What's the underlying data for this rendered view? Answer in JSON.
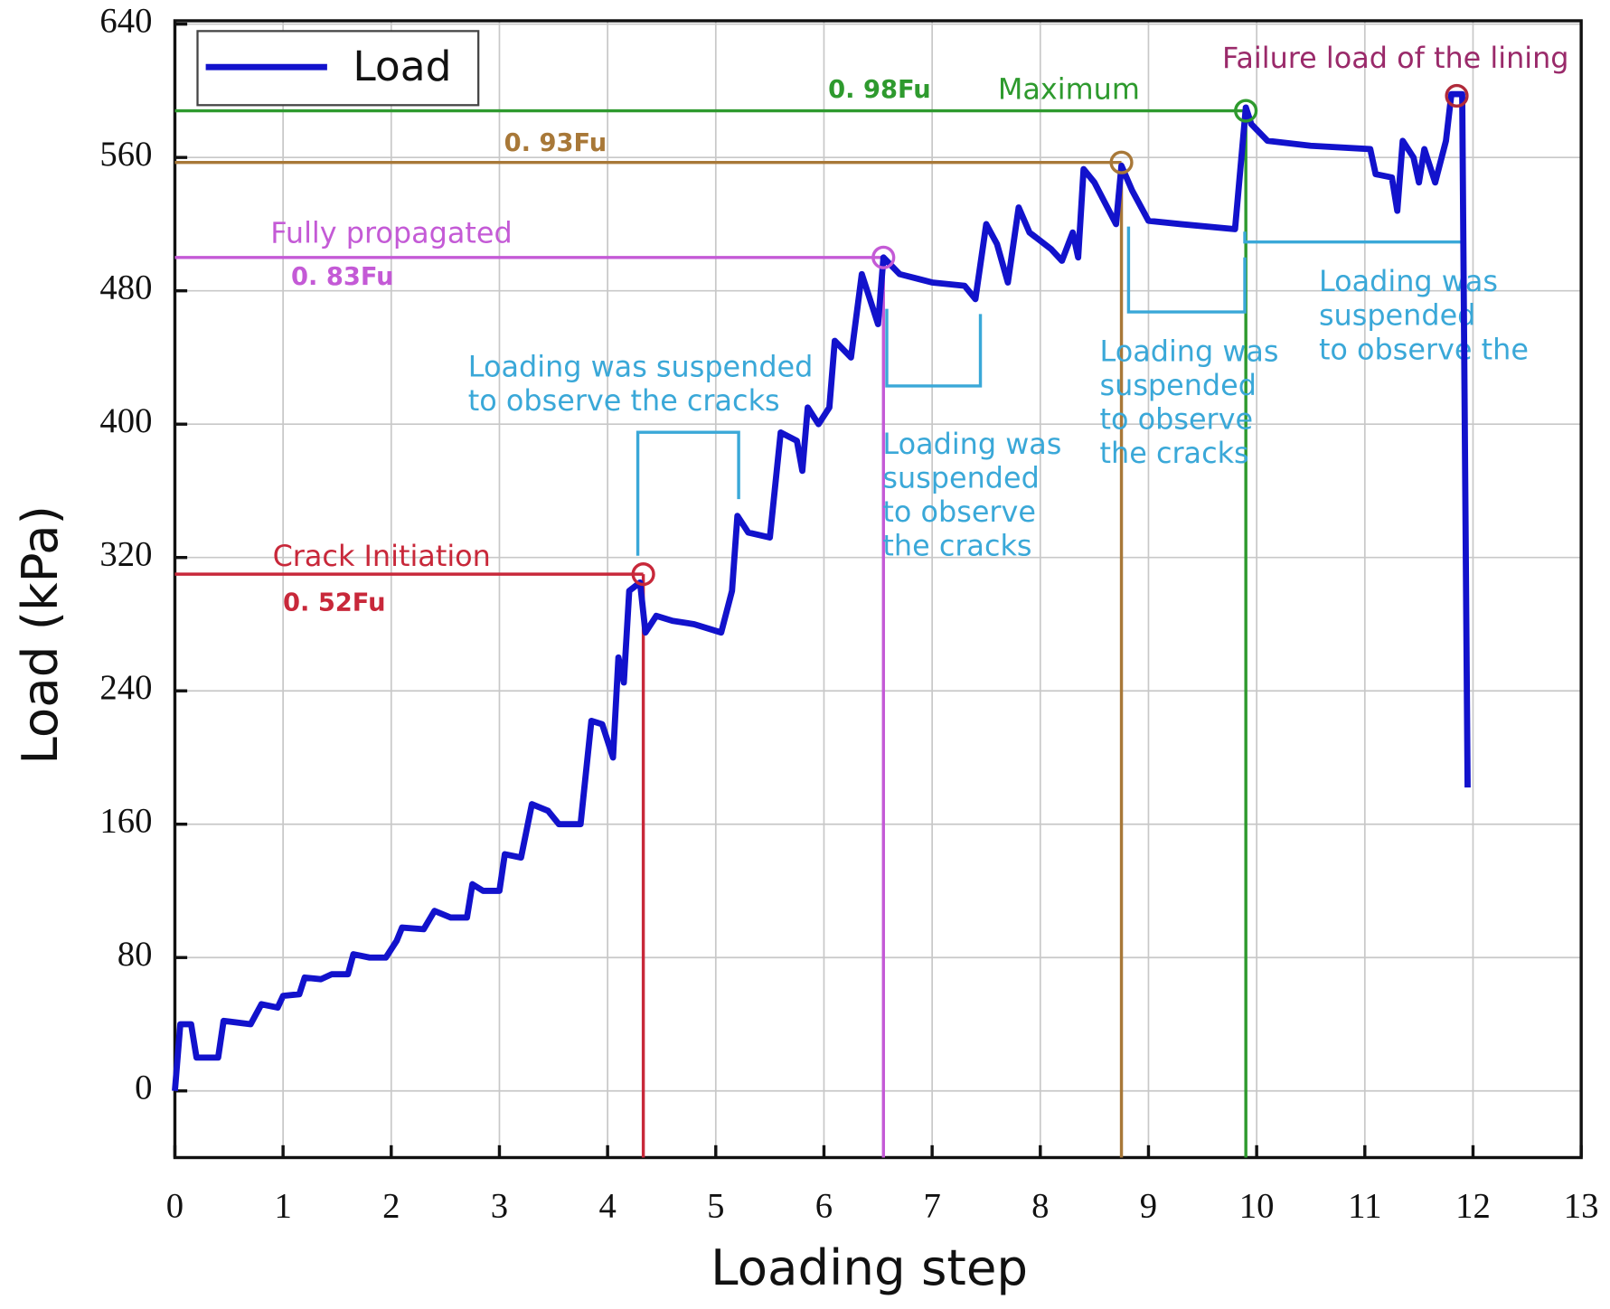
{
  "chart_data": {
    "type": "line",
    "x_label": "Loading step",
    "y_label": "Load (kPa)",
    "xlim": [
      0,
      13
    ],
    "ylim": [
      -40,
      642
    ],
    "xticks": [
      0,
      1,
      2,
      3,
      4,
      5,
      6,
      7,
      8,
      9,
      10,
      11,
      12,
      13
    ],
    "yticks": [
      0,
      80,
      160,
      240,
      320,
      400,
      480,
      560,
      640
    ],
    "grid": true,
    "legend": "upper left",
    "x": [
      0,
      0.05,
      0.15,
      0.2,
      0.4,
      0.45,
      0.7,
      0.8,
      0.95,
      1.0,
      1.15,
      1.2,
      1.35,
      1.45,
      1.6,
      1.65,
      1.8,
      1.95,
      2.05,
      2.1,
      2.3,
      2.4,
      2.55,
      2.7,
      2.75,
      2.85,
      3.0,
      3.05,
      3.2,
      3.3,
      3.45,
      3.55,
      3.75,
      3.85,
      3.95,
      4.05,
      4.1,
      4.15,
      4.2,
      4.3,
      4.35,
      4.45,
      4.6,
      4.8,
      5.05,
      5.15,
      5.2,
      5.3,
      5.5,
      5.6,
      5.75,
      5.8,
      5.85,
      5.95,
      6.05,
      6.1,
      6.25,
      6.35,
      6.45,
      6.5,
      6.55,
      6.7,
      7.0,
      7.3,
      7.4,
      7.5,
      7.6,
      7.7,
      7.8,
      7.9,
      8.1,
      8.2,
      8.3,
      8.35,
      8.4,
      8.5,
      8.7,
      8.75,
      8.85,
      9.0,
      9.3,
      9.8,
      9.9,
      9.95,
      10.1,
      10.5,
      11.05,
      11.1,
      11.25,
      11.3,
      11.35,
      11.45,
      11.5,
      11.55,
      11.65,
      11.75,
      11.8,
      11.9,
      11.95
    ],
    "series": [
      {
        "name": "Load",
        "color": "#1212cc",
        "values": [
          0,
          40,
          40,
          20,
          20,
          42,
          40,
          52,
          50,
          57,
          58,
          68,
          67,
          70,
          70,
          82,
          80,
          80,
          90,
          98,
          97,
          108,
          104,
          104,
          124,
          120,
          120,
          142,
          140,
          172,
          168,
          160,
          160,
          222,
          220,
          200,
          260,
          245,
          300,
          305,
          275,
          285,
          282,
          280,
          275,
          300,
          345,
          335,
          332,
          395,
          390,
          372,
          410,
          400,
          410,
          450,
          440,
          490,
          470,
          460,
          500,
          490,
          485,
          483,
          475,
          520,
          508,
          485,
          530,
          515,
          505,
          498,
          515,
          500,
          553,
          545,
          520,
          555,
          540,
          522,
          520,
          517,
          590,
          580,
          570,
          567,
          565,
          550,
          548,
          528,
          570,
          560,
          545,
          565,
          545,
          570,
          598,
          598,
          182
        ]
      }
    ],
    "markers": [
      {
        "label": "Crack Initiation",
        "fraction": "0. 52Fu",
        "x": 4.33,
        "y": 310,
        "color": "#c8283a"
      },
      {
        "label": "Fully propagated",
        "fraction": "0. 83Fu",
        "x": 6.55,
        "y": 500,
        "color": "#c45ad6"
      },
      {
        "fraction": "0. 93Fu",
        "x": 8.75,
        "y": 557,
        "color": "#a87838"
      },
      {
        "label": "Maximum",
        "fraction": "0. 98Fu",
        "x": 9.9,
        "y": 588,
        "color": "#2e9a2e"
      },
      {
        "label": "Failure load of the lining",
        "x": 11.85,
        "y": 597,
        "color": "#b02a3a",
        "label_color": "#9a2a6a"
      }
    ],
    "annotations": [
      {
        "lines": [
          "Loading was suspended",
          "to observe the cracks"
        ]
      },
      {
        "lines": [
          "Loading was",
          "suspended",
          "to observe",
          "the cracks"
        ]
      },
      {
        "lines": [
          "Loading was",
          "suspended",
          "to observe",
          "the cracks"
        ]
      },
      {
        "lines": [
          "Loading was",
          "suspended",
          "to observe the"
        ]
      }
    ],
    "annotation_color": "#3aa8d8"
  }
}
